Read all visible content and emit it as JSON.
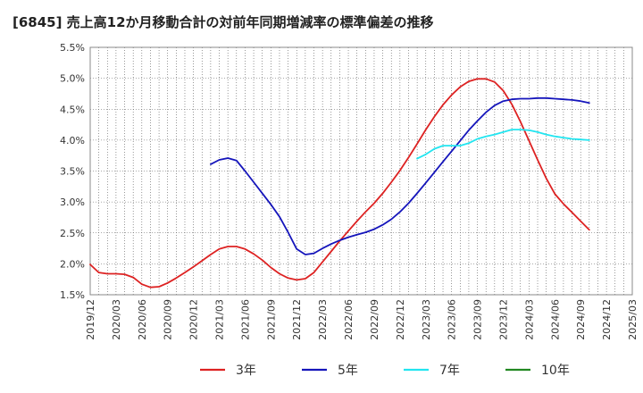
{
  "chart_data": {
    "type": "line",
    "title": "[6845]  売上高12か月移動合計の対前年同期増減率の標準偏差の推移",
    "xlabel": "",
    "ylabel": "",
    "ylim": [
      1.5,
      5.5
    ],
    "xlim": [
      "2019-12",
      "2025-03"
    ],
    "grid": true,
    "legend_position": "bottom",
    "y_ticks": [
      "1.5%",
      "2.0%",
      "2.5%",
      "3.0%",
      "3.5%",
      "4.0%",
      "4.5%",
      "5.0%",
      "5.5%"
    ],
    "x_ticks": [
      "2019/12",
      "2020/03",
      "2020/06",
      "2020/09",
      "2020/12",
      "2021/03",
      "2021/06",
      "2021/09",
      "2021/12",
      "2022/03",
      "2022/06",
      "2022/09",
      "2022/12",
      "2023/03",
      "2023/06",
      "2023/09",
      "2023/12",
      "2024/03",
      "2024/06",
      "2024/09",
      "2024/12",
      "2025/03"
    ],
    "series": [
      {
        "name": "3年",
        "color": "#dd2222",
        "points": [
          [
            "2019-12",
            1.99
          ],
          [
            "2020-01",
            1.86
          ],
          [
            "2020-02",
            1.84
          ],
          [
            "2020-03",
            1.84
          ],
          [
            "2020-04",
            1.83
          ],
          [
            "2020-05",
            1.78
          ],
          [
            "2020-06",
            1.67
          ],
          [
            "2020-07",
            1.62
          ],
          [
            "2020-08",
            1.63
          ],
          [
            "2020-09",
            1.69
          ],
          [
            "2020-10",
            1.77
          ],
          [
            "2020-11",
            1.86
          ],
          [
            "2020-12",
            1.95
          ],
          [
            "2021-01",
            2.05
          ],
          [
            "2021-02",
            2.15
          ],
          [
            "2021-03",
            2.24
          ],
          [
            "2021-04",
            2.28
          ],
          [
            "2021-05",
            2.28
          ],
          [
            "2021-06",
            2.24
          ],
          [
            "2021-07",
            2.16
          ],
          [
            "2021-08",
            2.06
          ],
          [
            "2021-09",
            1.94
          ],
          [
            "2021-10",
            1.84
          ],
          [
            "2021-11",
            1.77
          ],
          [
            "2021-12",
            1.74
          ],
          [
            "2022-01",
            1.76
          ],
          [
            "2022-02",
            1.86
          ],
          [
            "2022-03",
            2.03
          ],
          [
            "2022-04",
            2.2
          ],
          [
            "2022-05",
            2.37
          ],
          [
            "2022-06",
            2.53
          ],
          [
            "2022-07",
            2.69
          ],
          [
            "2022-08",
            2.84
          ],
          [
            "2022-09",
            2.98
          ],
          [
            "2022-10",
            3.14
          ],
          [
            "2022-11",
            3.32
          ],
          [
            "2022-12",
            3.51
          ],
          [
            "2023-01",
            3.72
          ],
          [
            "2023-02",
            3.94
          ],
          [
            "2023-03",
            4.17
          ],
          [
            "2023-04",
            4.38
          ],
          [
            "2023-05",
            4.57
          ],
          [
            "2023-06",
            4.73
          ],
          [
            "2023-07",
            4.86
          ],
          [
            "2023-08",
            4.95
          ],
          [
            "2023-09",
            4.99
          ],
          [
            "2023-10",
            4.99
          ],
          [
            "2023-11",
            4.94
          ],
          [
            "2023-12",
            4.8
          ],
          [
            "2024-01",
            4.58
          ],
          [
            "2024-02",
            4.3
          ],
          [
            "2024-03",
            3.99
          ],
          [
            "2024-04",
            3.68
          ],
          [
            "2024-05",
            3.38
          ],
          [
            "2024-06",
            3.13
          ],
          [
            "2024-07",
            2.97
          ],
          [
            "2024-08",
            2.83
          ],
          [
            "2024-09",
            2.69
          ],
          [
            "2024-10",
            2.55
          ]
        ]
      },
      {
        "name": "5年",
        "color": "#1515bb",
        "points": [
          [
            "2021-02",
            3.61
          ],
          [
            "2021-03",
            3.68
          ],
          [
            "2021-04",
            3.71
          ],
          [
            "2021-05",
            3.67
          ],
          [
            "2021-06",
            3.5
          ],
          [
            "2021-07",
            3.32
          ],
          [
            "2021-08",
            3.14
          ],
          [
            "2021-09",
            2.96
          ],
          [
            "2021-10",
            2.76
          ],
          [
            "2021-11",
            2.51
          ],
          [
            "2021-12",
            2.24
          ],
          [
            "2022-01",
            2.15
          ],
          [
            "2022-02",
            2.17
          ],
          [
            "2022-03",
            2.25
          ],
          [
            "2022-04",
            2.32
          ],
          [
            "2022-05",
            2.38
          ],
          [
            "2022-06",
            2.43
          ],
          [
            "2022-07",
            2.47
          ],
          [
            "2022-08",
            2.51
          ],
          [
            "2022-09",
            2.56
          ],
          [
            "2022-10",
            2.63
          ],
          [
            "2022-11",
            2.72
          ],
          [
            "2022-12",
            2.84
          ],
          [
            "2023-01",
            2.98
          ],
          [
            "2023-02",
            3.14
          ],
          [
            "2023-03",
            3.31
          ],
          [
            "2023-04",
            3.48
          ],
          [
            "2023-05",
            3.65
          ],
          [
            "2023-06",
            3.82
          ],
          [
            "2023-07",
            3.99
          ],
          [
            "2023-08",
            4.16
          ],
          [
            "2023-09",
            4.31
          ],
          [
            "2023-10",
            4.45
          ],
          [
            "2023-11",
            4.56
          ],
          [
            "2023-12",
            4.63
          ],
          [
            "2024-01",
            4.66
          ],
          [
            "2024-02",
            4.67
          ],
          [
            "2024-03",
            4.67
          ],
          [
            "2024-04",
            4.68
          ],
          [
            "2024-05",
            4.68
          ],
          [
            "2024-06",
            4.67
          ],
          [
            "2024-07",
            4.66
          ],
          [
            "2024-08",
            4.65
          ],
          [
            "2024-09",
            4.63
          ],
          [
            "2024-10",
            4.6
          ]
        ]
      },
      {
        "name": "7年",
        "color": "#22e5f0",
        "points": [
          [
            "2023-02",
            3.7
          ],
          [
            "2023-03",
            3.77
          ],
          [
            "2023-04",
            3.86
          ],
          [
            "2023-05",
            3.91
          ],
          [
            "2023-06",
            3.91
          ],
          [
            "2023-07",
            3.91
          ],
          [
            "2023-08",
            3.95
          ],
          [
            "2023-09",
            4.02
          ],
          [
            "2023-10",
            4.06
          ],
          [
            "2023-11",
            4.09
          ],
          [
            "2023-12",
            4.13
          ],
          [
            "2024-01",
            4.17
          ],
          [
            "2024-02",
            4.17
          ],
          [
            "2024-03",
            4.16
          ],
          [
            "2024-04",
            4.13
          ],
          [
            "2024-05",
            4.09
          ],
          [
            "2024-06",
            4.06
          ],
          [
            "2024-07",
            4.04
          ],
          [
            "2024-08",
            4.02
          ],
          [
            "2024-09",
            4.01
          ],
          [
            "2024-10",
            4.0
          ]
        ]
      },
      {
        "name": "10年",
        "color": "#228822",
        "points": []
      }
    ]
  }
}
